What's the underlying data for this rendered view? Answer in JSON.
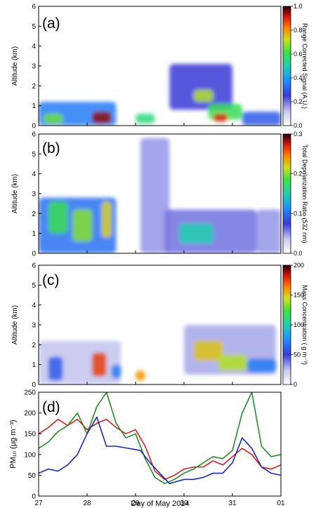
{
  "chart_data": [
    {
      "type": "heatmap",
      "panel_label": "(a)",
      "ylabel": "Altitude (km)",
      "ylim": [
        0,
        6
      ],
      "yticks": [
        "0",
        "1",
        "2",
        "3",
        "4",
        "5",
        "6"
      ],
      "colorbar": {
        "label": "Range Corrected Signal (A.U.)",
        "ticks": [
          "0.0",
          "0.2",
          "0.4",
          "0.6",
          "0.8",
          "1.0"
        ],
        "range": [
          0,
          1
        ]
      },
      "layers": [
        {
          "x0": 27.0,
          "x1": 28.6,
          "y0": 0.0,
          "y1": 1.2,
          "v": 0.35
        },
        {
          "x0": 27.1,
          "x1": 27.5,
          "y0": 0.1,
          "y1": 0.6,
          "v": 0.65
        },
        {
          "x0": 28.1,
          "x1": 28.5,
          "y0": 0.1,
          "y1": 0.7,
          "v": 0.95
        },
        {
          "x0": 29.0,
          "x1": 29.4,
          "y0": 0.1,
          "y1": 0.6,
          "v": 0.55
        },
        {
          "x0": 29.7,
          "x1": 31.0,
          "y0": 0.8,
          "y1": 3.1,
          "v": 0.25
        },
        {
          "x0": 30.2,
          "x1": 30.6,
          "y0": 1.2,
          "y1": 1.8,
          "v": 0.7
        },
        {
          "x0": 30.5,
          "x1": 31.2,
          "y0": 0.3,
          "y1": 1.1,
          "v": 0.6
        },
        {
          "x0": 30.6,
          "x1": 30.9,
          "y0": 0.2,
          "y1": 0.6,
          "v": 0.9
        },
        {
          "x0": 31.2,
          "x1": 32.0,
          "y0": 0.0,
          "y1": 0.7,
          "v": 0.3
        }
      ]
    },
    {
      "type": "heatmap",
      "panel_label": "(b)",
      "ylabel": "Altitude (km)",
      "ylim": [
        0,
        6
      ],
      "yticks": [
        "0",
        "1",
        "2",
        "3",
        "4",
        "5",
        "6"
      ],
      "colorbar": {
        "label": "Total Depolarization Ratio (532 nm)",
        "ticks": [
          "0.0",
          "0.1",
          "0.2",
          "0.3"
        ],
        "range": [
          0,
          0.3
        ]
      },
      "layers": [
        {
          "x0": 27.0,
          "x1": 28.6,
          "y0": 0.0,
          "y1": 2.8,
          "v": 0.1
        },
        {
          "x0": 27.2,
          "x1": 27.6,
          "y0": 1.0,
          "y1": 2.6,
          "v": 0.18
        },
        {
          "x0": 27.7,
          "x1": 28.1,
          "y0": 0.6,
          "y1": 2.2,
          "v": 0.2
        },
        {
          "x0": 28.3,
          "x1": 28.5,
          "y0": 0.8,
          "y1": 2.6,
          "v": 0.22
        },
        {
          "x0": 29.1,
          "x1": 29.7,
          "y0": 0.0,
          "y1": 5.8,
          "v": 0.05
        },
        {
          "x0": 29.6,
          "x1": 31.5,
          "y0": 0.0,
          "y1": 2.2,
          "v": 0.06
        },
        {
          "x0": 29.9,
          "x1": 30.6,
          "y0": 0.5,
          "y1": 1.5,
          "v": 0.15
        },
        {
          "x0": 31.5,
          "x1": 32.0,
          "y0": 0.0,
          "y1": 2.2,
          "v": 0.05
        }
      ]
    },
    {
      "type": "heatmap",
      "panel_label": "(c)",
      "ylabel": "Altitude (km)",
      "ylim": [
        0,
        6
      ],
      "yticks": [
        "0",
        "1",
        "2",
        "3",
        "4",
        "5",
        "6"
      ],
      "colorbar": {
        "label": "Mass Concentration ( g m⁻³)",
        "ticks": [
          "0",
          "50",
          "100",
          "150",
          "200"
        ],
        "range": [
          0,
          200
        ]
      },
      "layers": [
        {
          "x0": 27.0,
          "x1": 28.7,
          "y0": 0.0,
          "y1": 2.2,
          "v": 25
        },
        {
          "x0": 27.2,
          "x1": 27.5,
          "y0": 0.2,
          "y1": 1.4,
          "v": 60
        },
        {
          "x0": 28.1,
          "x1": 28.4,
          "y0": 0.4,
          "y1": 1.6,
          "v": 175
        },
        {
          "x0": 28.5,
          "x1": 28.7,
          "y0": 0.3,
          "y1": 1.0,
          "v": 70
        },
        {
          "x0": 29.0,
          "x1": 29.2,
          "y0": 0.2,
          "y1": 0.7,
          "v": 160
        },
        {
          "x0": 30.0,
          "x1": 31.9,
          "y0": 0.5,
          "y1": 3.0,
          "v": 30
        },
        {
          "x0": 30.2,
          "x1": 30.8,
          "y0": 1.2,
          "y1": 2.2,
          "v": 150
        },
        {
          "x0": 30.7,
          "x1": 31.3,
          "y0": 0.7,
          "y1": 1.5,
          "v": 140
        },
        {
          "x0": 31.3,
          "x1": 31.9,
          "y0": 0.6,
          "y1": 1.3,
          "v": 70
        }
      ]
    },
    {
      "type": "line",
      "panel_label": "(d)",
      "ylabel": "PM₁₀ (μg m⁻³)",
      "xlabel": "Day of May 2014",
      "xlim": [
        27,
        32
      ],
      "ylim": [
        0,
        250
      ],
      "xticks": [
        "27",
        "28",
        "29",
        "30",
        "31",
        "01"
      ],
      "yticks": [
        "0",
        "50",
        "100",
        "150",
        "200",
        "250"
      ],
      "series": [
        {
          "color": "#d42020",
          "x": [
            27.0,
            27.2,
            27.4,
            27.6,
            27.8,
            28.0,
            28.2,
            28.4,
            28.6,
            28.8,
            29.0,
            29.2,
            29.4,
            29.6,
            29.8,
            30.0,
            30.2,
            30.4,
            30.6,
            30.8,
            31.0,
            31.2,
            31.4,
            31.6,
            31.8,
            32.0
          ],
          "y": [
            150,
            165,
            185,
            170,
            185,
            160,
            175,
            185,
            165,
            150,
            160,
            120,
            60,
            40,
            50,
            65,
            70,
            70,
            85,
            75,
            95,
            115,
            100,
            70,
            65,
            75
          ]
        },
        {
          "color": "#2a8a2a",
          "x": [
            27.0,
            27.2,
            27.4,
            27.6,
            27.8,
            28.0,
            28.2,
            28.4,
            28.6,
            28.8,
            29.0,
            29.2,
            29.4,
            29.6,
            29.8,
            30.0,
            30.2,
            30.4,
            30.6,
            30.8,
            31.0,
            31.2,
            31.4,
            31.6,
            31.8,
            32.0
          ],
          "y": [
            115,
            130,
            155,
            170,
            200,
            150,
            215,
            250,
            175,
            140,
            150,
            90,
            45,
            30,
            40,
            55,
            65,
            80,
            95,
            90,
            110,
            200,
            250,
            120,
            95,
            100
          ]
        },
        {
          "color": "#1c2bb0",
          "x": [
            27.0,
            27.2,
            27.4,
            27.6,
            27.8,
            28.0,
            28.2,
            28.4,
            28.6,
            29.1,
            29.3,
            29.5,
            29.7,
            30.0,
            30.2,
            30.4,
            30.6,
            30.8,
            31.0,
            31.2,
            31.4,
            31.6,
            31.8,
            32.0
          ],
          "y": [
            55,
            65,
            60,
            75,
            100,
            150,
            190,
            120,
            120,
            110,
            80,
            55,
            30,
            40,
            40,
            45,
            55,
            55,
            80,
            140,
            115,
            70,
            55,
            50
          ]
        }
      ]
    }
  ]
}
